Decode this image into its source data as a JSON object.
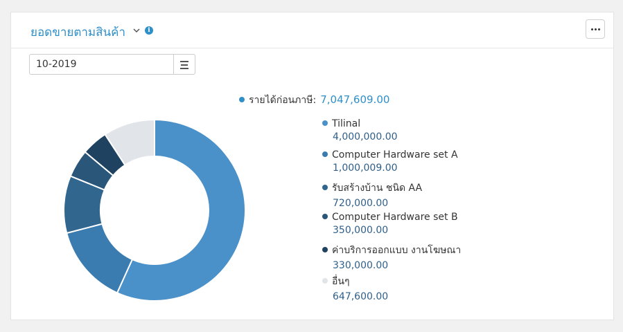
{
  "header": {
    "title": "ยอดขายตามสินค้า",
    "info_icon": "info-icon",
    "chevron_icon": "chevron-down-icon",
    "more_icon": "ellipsis-icon"
  },
  "filter": {
    "period_value": "10-2019",
    "menu_icon": "menu-lines-icon"
  },
  "summary": {
    "label": "รายได้ก่อนภาษี:",
    "value": "7,047,609.00",
    "color": "#2f8fc9"
  },
  "chart_data": {
    "type": "pie",
    "donut": true,
    "total": 7047609.0,
    "slices": [
      {
        "label": "Tilinal",
        "value": 4000000.0,
        "display": "4,000,000.00",
        "color": "#4a90c9"
      },
      {
        "label": "Computer Hardware set A",
        "value": 1000009.0,
        "display": "1,000,009.00",
        "color": "#3a7bb0"
      },
      {
        "label": "รับสร้างบ้าน ชนิด AA",
        "value": 720000.0,
        "display": "720,000.00",
        "color": "#31668f"
      },
      {
        "label": "Computer Hardware set B",
        "value": 350000.0,
        "display": "350,000.00",
        "color": "#2a5679"
      },
      {
        "label": "ค่าบริการออกแบบ งานโฆษณา",
        "value": 330000.0,
        "display": "330,000.00",
        "color": "#1e4260"
      },
      {
        "label": "อื่นๆ",
        "value": 647600.0,
        "display": "647,600.00",
        "color": "#e1e5ea"
      }
    ]
  }
}
